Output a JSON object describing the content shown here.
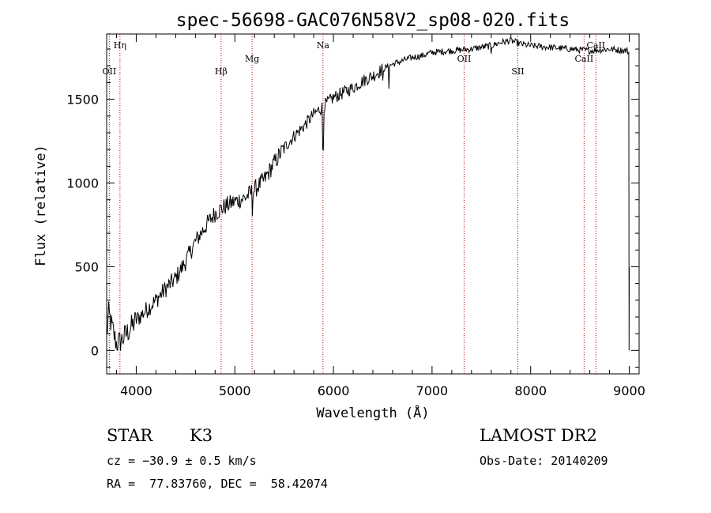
{
  "chart_data": {
    "type": "line",
    "title": "spec-56698-GAC076N58V2_sp08-020.fits",
    "xlabel": "Wavelength (Å)",
    "ylabel": "Flux (relative)",
    "xlim": [
      3700,
      9100
    ],
    "ylim": [
      -140,
      1890
    ],
    "x_ticks": [
      4000,
      5000,
      6000,
      7000,
      8000,
      9000
    ],
    "y_ticks": [
      0,
      500,
      1000,
      1500
    ],
    "grid": false,
    "spectrum_anchors": [
      [
        3700,
        80
      ],
      [
        3720,
        220
      ],
      [
        3750,
        150
      ],
      [
        3780,
        80
      ],
      [
        3800,
        40
      ],
      [
        3850,
        60
      ],
      [
        3900,
        100
      ],
      [
        4000,
        180
      ],
      [
        4100,
        240
      ],
      [
        4200,
        300
      ],
      [
        4300,
        370
      ],
      [
        4400,
        430
      ],
      [
        4500,
        530
      ],
      [
        4600,
        650
      ],
      [
        4700,
        740
      ],
      [
        4800,
        820
      ],
      [
        4900,
        860
      ],
      [
        5000,
        890
      ],
      [
        5100,
        910
      ],
      [
        5200,
        960
      ],
      [
        5300,
        1020
      ],
      [
        5400,
        1120
      ],
      [
        5500,
        1210
      ],
      [
        5600,
        1280
      ],
      [
        5700,
        1340
      ],
      [
        5800,
        1410
      ],
      [
        5900,
        1460
      ],
      [
        6000,
        1510
      ],
      [
        6100,
        1540
      ],
      [
        6200,
        1570
      ],
      [
        6300,
        1610
      ],
      [
        6400,
        1640
      ],
      [
        6500,
        1680
      ],
      [
        6600,
        1710
      ],
      [
        6700,
        1730
      ],
      [
        6800,
        1750
      ],
      [
        6900,
        1760
      ],
      [
        7000,
        1780
      ],
      [
        7200,
        1790
      ],
      [
        7400,
        1800
      ],
      [
        7600,
        1820
      ],
      [
        7700,
        1840
      ],
      [
        7800,
        1850
      ],
      [
        7900,
        1830
      ],
      [
        8000,
        1820
      ],
      [
        8200,
        1810
      ],
      [
        8400,
        1800
      ],
      [
        8600,
        1790
      ],
      [
        8800,
        1800
      ],
      [
        8980,
        1790
      ],
      [
        9000,
        1780
      ]
    ],
    "spectral_lines": [
      {
        "label": "Hη",
        "wavelength": 3835,
        "row": 1
      },
      {
        "label": "OII",
        "wavelength": 3727,
        "row": 3
      },
      {
        "label": "Hβ",
        "wavelength": 4861,
        "row": 3
      },
      {
        "label": "Mg",
        "wavelength": 5175,
        "row": 2
      },
      {
        "label": "Na",
        "wavelength": 5894,
        "row": 1
      },
      {
        "label": "OII",
        "wavelength": 7325,
        "row": 2
      },
      {
        "label": "SII",
        "wavelength": 7870,
        "row": 3
      },
      {
        "label": "CaII",
        "wavelength": 8542,
        "row": 2
      },
      {
        "label": "CaII",
        "wavelength": 8662,
        "row": 1
      }
    ]
  },
  "info": {
    "object_class": "STAR",
    "subclass": "K3",
    "survey": "LAMOST DR2",
    "cz": "cz = −30.9 ± 0.5 km/s",
    "obs_date": "Obs-Date: 20140209",
    "coords": "RA =  77.83760, DEC =  58.42074"
  }
}
